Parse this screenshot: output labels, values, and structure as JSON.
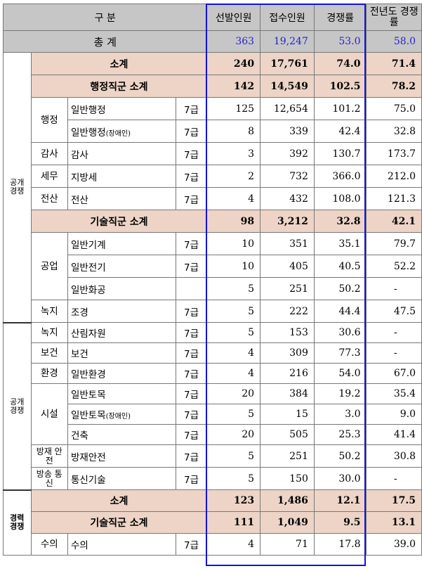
{
  "header": {
    "category": "구 분",
    "selected": "선발인원",
    "applicants": "접수인원",
    "ratio": "경쟁률",
    "prev_ratio": "전년도 경쟁률"
  },
  "total": {
    "label": "총 계",
    "selected": "363",
    "applicants": "19,247",
    "ratio": "53.0",
    "prev": "58.0"
  },
  "groups": {
    "open_upper": "공개 경쟁",
    "open_lower": "공개 경쟁",
    "career": "경력 경쟁"
  },
  "open_subtotal": {
    "label": "소계",
    "selected": "240",
    "applicants": "17,761",
    "ratio": "74.0",
    "prev": "71.4"
  },
  "admin_subtotal": {
    "label": "행정직군 소계",
    "selected": "142",
    "applicants": "14,549",
    "ratio": "102.5",
    "prev": "78.2"
  },
  "tech_subtotal": {
    "label": "기술직군 소계",
    "selected": "98",
    "applicants": "3,212",
    "ratio": "32.8",
    "prev": "42.1"
  },
  "career_subtotal": {
    "label": "소계",
    "selected": "123",
    "applicants": "1,486",
    "ratio": "12.1",
    "prev": "17.5"
  },
  "career_tech_subtotal": {
    "label": "기술직군 소계",
    "selected": "111",
    "applicants": "1,049",
    "ratio": "9.5",
    "prev": "13.1"
  },
  "rows": {
    "r1": {
      "series": "행정",
      "job": "일반행정",
      "level": "7급",
      "selected": "125",
      "applicants": "12,654",
      "ratio": "101.2",
      "prev": "75.0"
    },
    "r2": {
      "job": "일반행정",
      "job_note": "(장애인)",
      "level": "7급",
      "selected": "8",
      "applicants": "339",
      "ratio": "42.4",
      "prev": "32.8"
    },
    "r3": {
      "series": "감사",
      "job": "감사",
      "level": "7급",
      "selected": "3",
      "applicants": "392",
      "ratio": "130.7",
      "prev": "173.7"
    },
    "r4": {
      "series": "세무",
      "job": "지방세",
      "level": "7급",
      "selected": "2",
      "applicants": "732",
      "ratio": "366.0",
      "prev": "212.0"
    },
    "r5": {
      "series": "전산",
      "job": "전산",
      "level": "7급",
      "selected": "4",
      "applicants": "432",
      "ratio": "108.0",
      "prev": "121.3"
    },
    "r6": {
      "series": "공업",
      "job": "일반기계",
      "level": "7급",
      "selected": "10",
      "applicants": "351",
      "ratio": "35.1",
      "prev": "79.7"
    },
    "r7": {
      "job": "일반전기",
      "level": "7급",
      "selected": "10",
      "applicants": "405",
      "ratio": "40.5",
      "prev": "52.2"
    },
    "r8": {
      "job": "일반화공",
      "level": "",
      "selected": "5",
      "applicants": "251",
      "ratio": "50.2",
      "prev": "-"
    },
    "r9": {
      "series": "녹지",
      "job": "조경",
      "level": "7급",
      "selected": "5",
      "applicants": "222",
      "ratio": "44.4",
      "prev": "47.5"
    },
    "r10": {
      "series": "녹지",
      "job": "산림자원",
      "level": "7급",
      "selected": "5",
      "applicants": "153",
      "ratio": "30.6",
      "prev": "-"
    },
    "r11": {
      "series": "보건",
      "job": "보건",
      "level": "7급",
      "selected": "4",
      "applicants": "309",
      "ratio": "77.3",
      "prev": "-"
    },
    "r12": {
      "series": "환경",
      "job": "일반환경",
      "level": "7급",
      "selected": "4",
      "applicants": "216",
      "ratio": "54.0",
      "prev": "67.0"
    },
    "r13": {
      "series": "시설",
      "job": "일반토목",
      "level": "7급",
      "selected": "20",
      "applicants": "384",
      "ratio": "19.2",
      "prev": "35.4"
    },
    "r14": {
      "job": "일반토목",
      "job_note": "(장애인)",
      "level": "7급",
      "selected": "5",
      "applicants": "15",
      "ratio": "3.0",
      "prev": "9.0"
    },
    "r15": {
      "job": "건축",
      "level": "7급",
      "selected": "20",
      "applicants": "505",
      "ratio": "25.3",
      "prev": "41.4"
    },
    "r16": {
      "series": "방재 안전",
      "job": "방재안전",
      "level": "7급",
      "selected": "5",
      "applicants": "251",
      "ratio": "50.2",
      "prev": "30.8"
    },
    "r17": {
      "series": "방송 통신",
      "job": "통신기술",
      "level": "7급",
      "selected": "5",
      "applicants": "150",
      "ratio": "30.0",
      "prev": "-"
    },
    "r18": {
      "series": "수의",
      "job": "수의",
      "level": "7급",
      "selected": "4",
      "applicants": "71",
      "ratio": "17.8",
      "prev": "39.0"
    }
  }
}
